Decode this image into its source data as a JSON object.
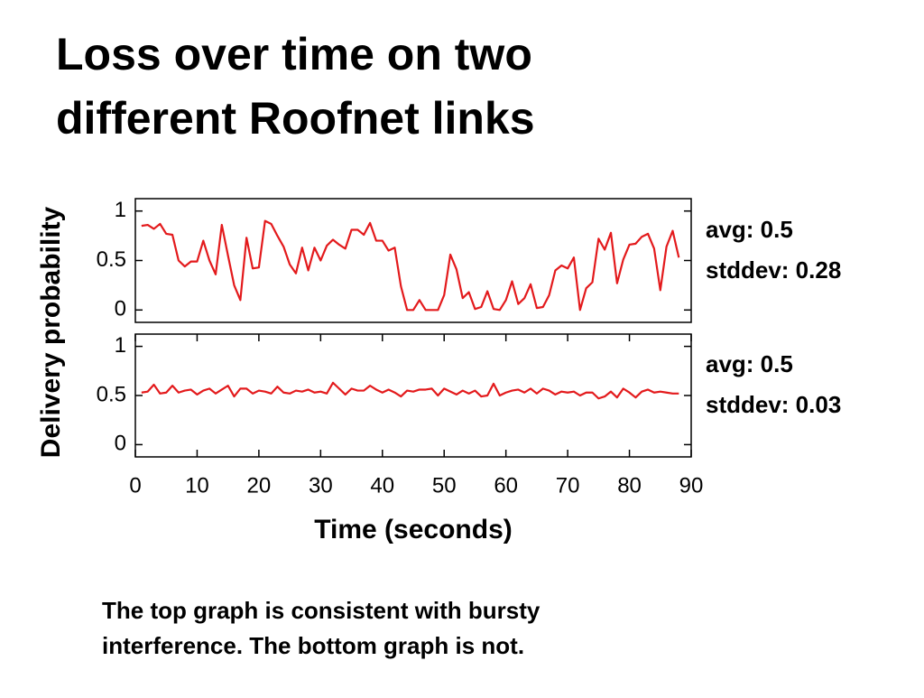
{
  "slide": {
    "title_lines": [
      "Loss over time on two",
      "different Roofnet links"
    ],
    "y_label": "Delivery probability",
    "caption_lines": [
      "The top graph is consistent with bursty",
      "interference.  The bottom graph is not."
    ]
  },
  "chart_data": [
    {
      "type": "line",
      "color": "#e31a1c",
      "xlim": [
        0,
        90
      ],
      "ylim": [
        -0.125,
        1.125
      ],
      "yticks": [
        0,
        0.5,
        1
      ],
      "annotations": [
        "avg: 0.5",
        "stddev: 0.28"
      ],
      "x": [
        1,
        2,
        3,
        4,
        5,
        6,
        7,
        8,
        9,
        10,
        11,
        12,
        13,
        14,
        15,
        16,
        17,
        18,
        19,
        20,
        21,
        22,
        23,
        24,
        25,
        26,
        27,
        28,
        29,
        30,
        31,
        32,
        33,
        34,
        35,
        36,
        37,
        38,
        39,
        40,
        41,
        42,
        43,
        44,
        45,
        46,
        47,
        48,
        49,
        50,
        51,
        52,
        53,
        54,
        55,
        56,
        57,
        58,
        59,
        60,
        61,
        62,
        63,
        64,
        65,
        66,
        67,
        68,
        69,
        70,
        71,
        72,
        73,
        74,
        75,
        76,
        77,
        78,
        79,
        80,
        81,
        82,
        83,
        84,
        85,
        86,
        87,
        88
      ],
      "values": [
        0.85,
        0.86,
        0.82,
        0.87,
        0.77,
        0.76,
        0.5,
        0.44,
        0.49,
        0.49,
        0.7,
        0.5,
        0.36,
        0.86,
        0.55,
        0.25,
        0.1,
        0.73,
        0.42,
        0.43,
        0.9,
        0.87,
        0.75,
        0.64,
        0.46,
        0.37,
        0.63,
        0.4,
        0.63,
        0.5,
        0.65,
        0.71,
        0.66,
        0.62,
        0.81,
        0.81,
        0.76,
        0.88,
        0.7,
        0.7,
        0.6,
        0.63,
        0.24,
        0.0,
        0.0,
        0.1,
        0.0,
        0.0,
        0.0,
        0.15,
        0.56,
        0.41,
        0.12,
        0.18,
        0.01,
        0.03,
        0.19,
        0.01,
        0.0,
        0.1,
        0.29,
        0.06,
        0.12,
        0.26,
        0.02,
        0.03,
        0.15,
        0.4,
        0.45,
        0.42,
        0.53,
        0.0,
        0.22,
        0.28,
        0.72,
        0.61,
        0.78,
        0.27,
        0.51,
        0.66,
        0.67,
        0.74,
        0.77,
        0.62,
        0.2,
        0.64,
        0.8,
        0.53
      ]
    },
    {
      "type": "line",
      "color": "#e31a1c",
      "xlim": [
        0,
        90
      ],
      "ylim": [
        -0.125,
        1.125
      ],
      "yticks": [
        0,
        0.5,
        1
      ],
      "xticks": [
        0,
        10,
        20,
        30,
        40,
        50,
        60,
        70,
        80,
        90
      ],
      "x_label": "Time (seconds)",
      "annotations": [
        "avg: 0.5",
        "stddev: 0.03"
      ],
      "x": [
        1,
        2,
        3,
        4,
        5,
        6,
        7,
        8,
        9,
        10,
        11,
        12,
        13,
        14,
        15,
        16,
        17,
        18,
        19,
        20,
        21,
        22,
        23,
        24,
        25,
        26,
        27,
        28,
        29,
        30,
        31,
        32,
        33,
        34,
        35,
        36,
        37,
        38,
        39,
        40,
        41,
        42,
        43,
        44,
        45,
        46,
        47,
        48,
        49,
        50,
        51,
        52,
        53,
        54,
        55,
        56,
        57,
        58,
        59,
        60,
        61,
        62,
        63,
        64,
        65,
        66,
        67,
        68,
        69,
        70,
        71,
        72,
        73,
        74,
        75,
        76,
        77,
        78,
        79,
        80,
        81,
        82,
        83,
        84,
        85,
        86,
        87,
        88
      ],
      "values": [
        0.53,
        0.54,
        0.61,
        0.52,
        0.53,
        0.6,
        0.53,
        0.55,
        0.56,
        0.51,
        0.55,
        0.57,
        0.52,
        0.56,
        0.6,
        0.49,
        0.57,
        0.57,
        0.52,
        0.55,
        0.54,
        0.52,
        0.59,
        0.53,
        0.52,
        0.55,
        0.54,
        0.56,
        0.53,
        0.54,
        0.52,
        0.63,
        0.57,
        0.51,
        0.57,
        0.55,
        0.55,
        0.6,
        0.56,
        0.53,
        0.56,
        0.53,
        0.49,
        0.55,
        0.54,
        0.56,
        0.56,
        0.57,
        0.5,
        0.57,
        0.54,
        0.51,
        0.55,
        0.52,
        0.55,
        0.49,
        0.5,
        0.62,
        0.5,
        0.53,
        0.55,
        0.56,
        0.53,
        0.57,
        0.52,
        0.57,
        0.55,
        0.51,
        0.54,
        0.53,
        0.54,
        0.5,
        0.53,
        0.53,
        0.47,
        0.49,
        0.54,
        0.48,
        0.57,
        0.53,
        0.48,
        0.54,
        0.56,
        0.53,
        0.54,
        0.53,
        0.52,
        0.52
      ]
    }
  ]
}
